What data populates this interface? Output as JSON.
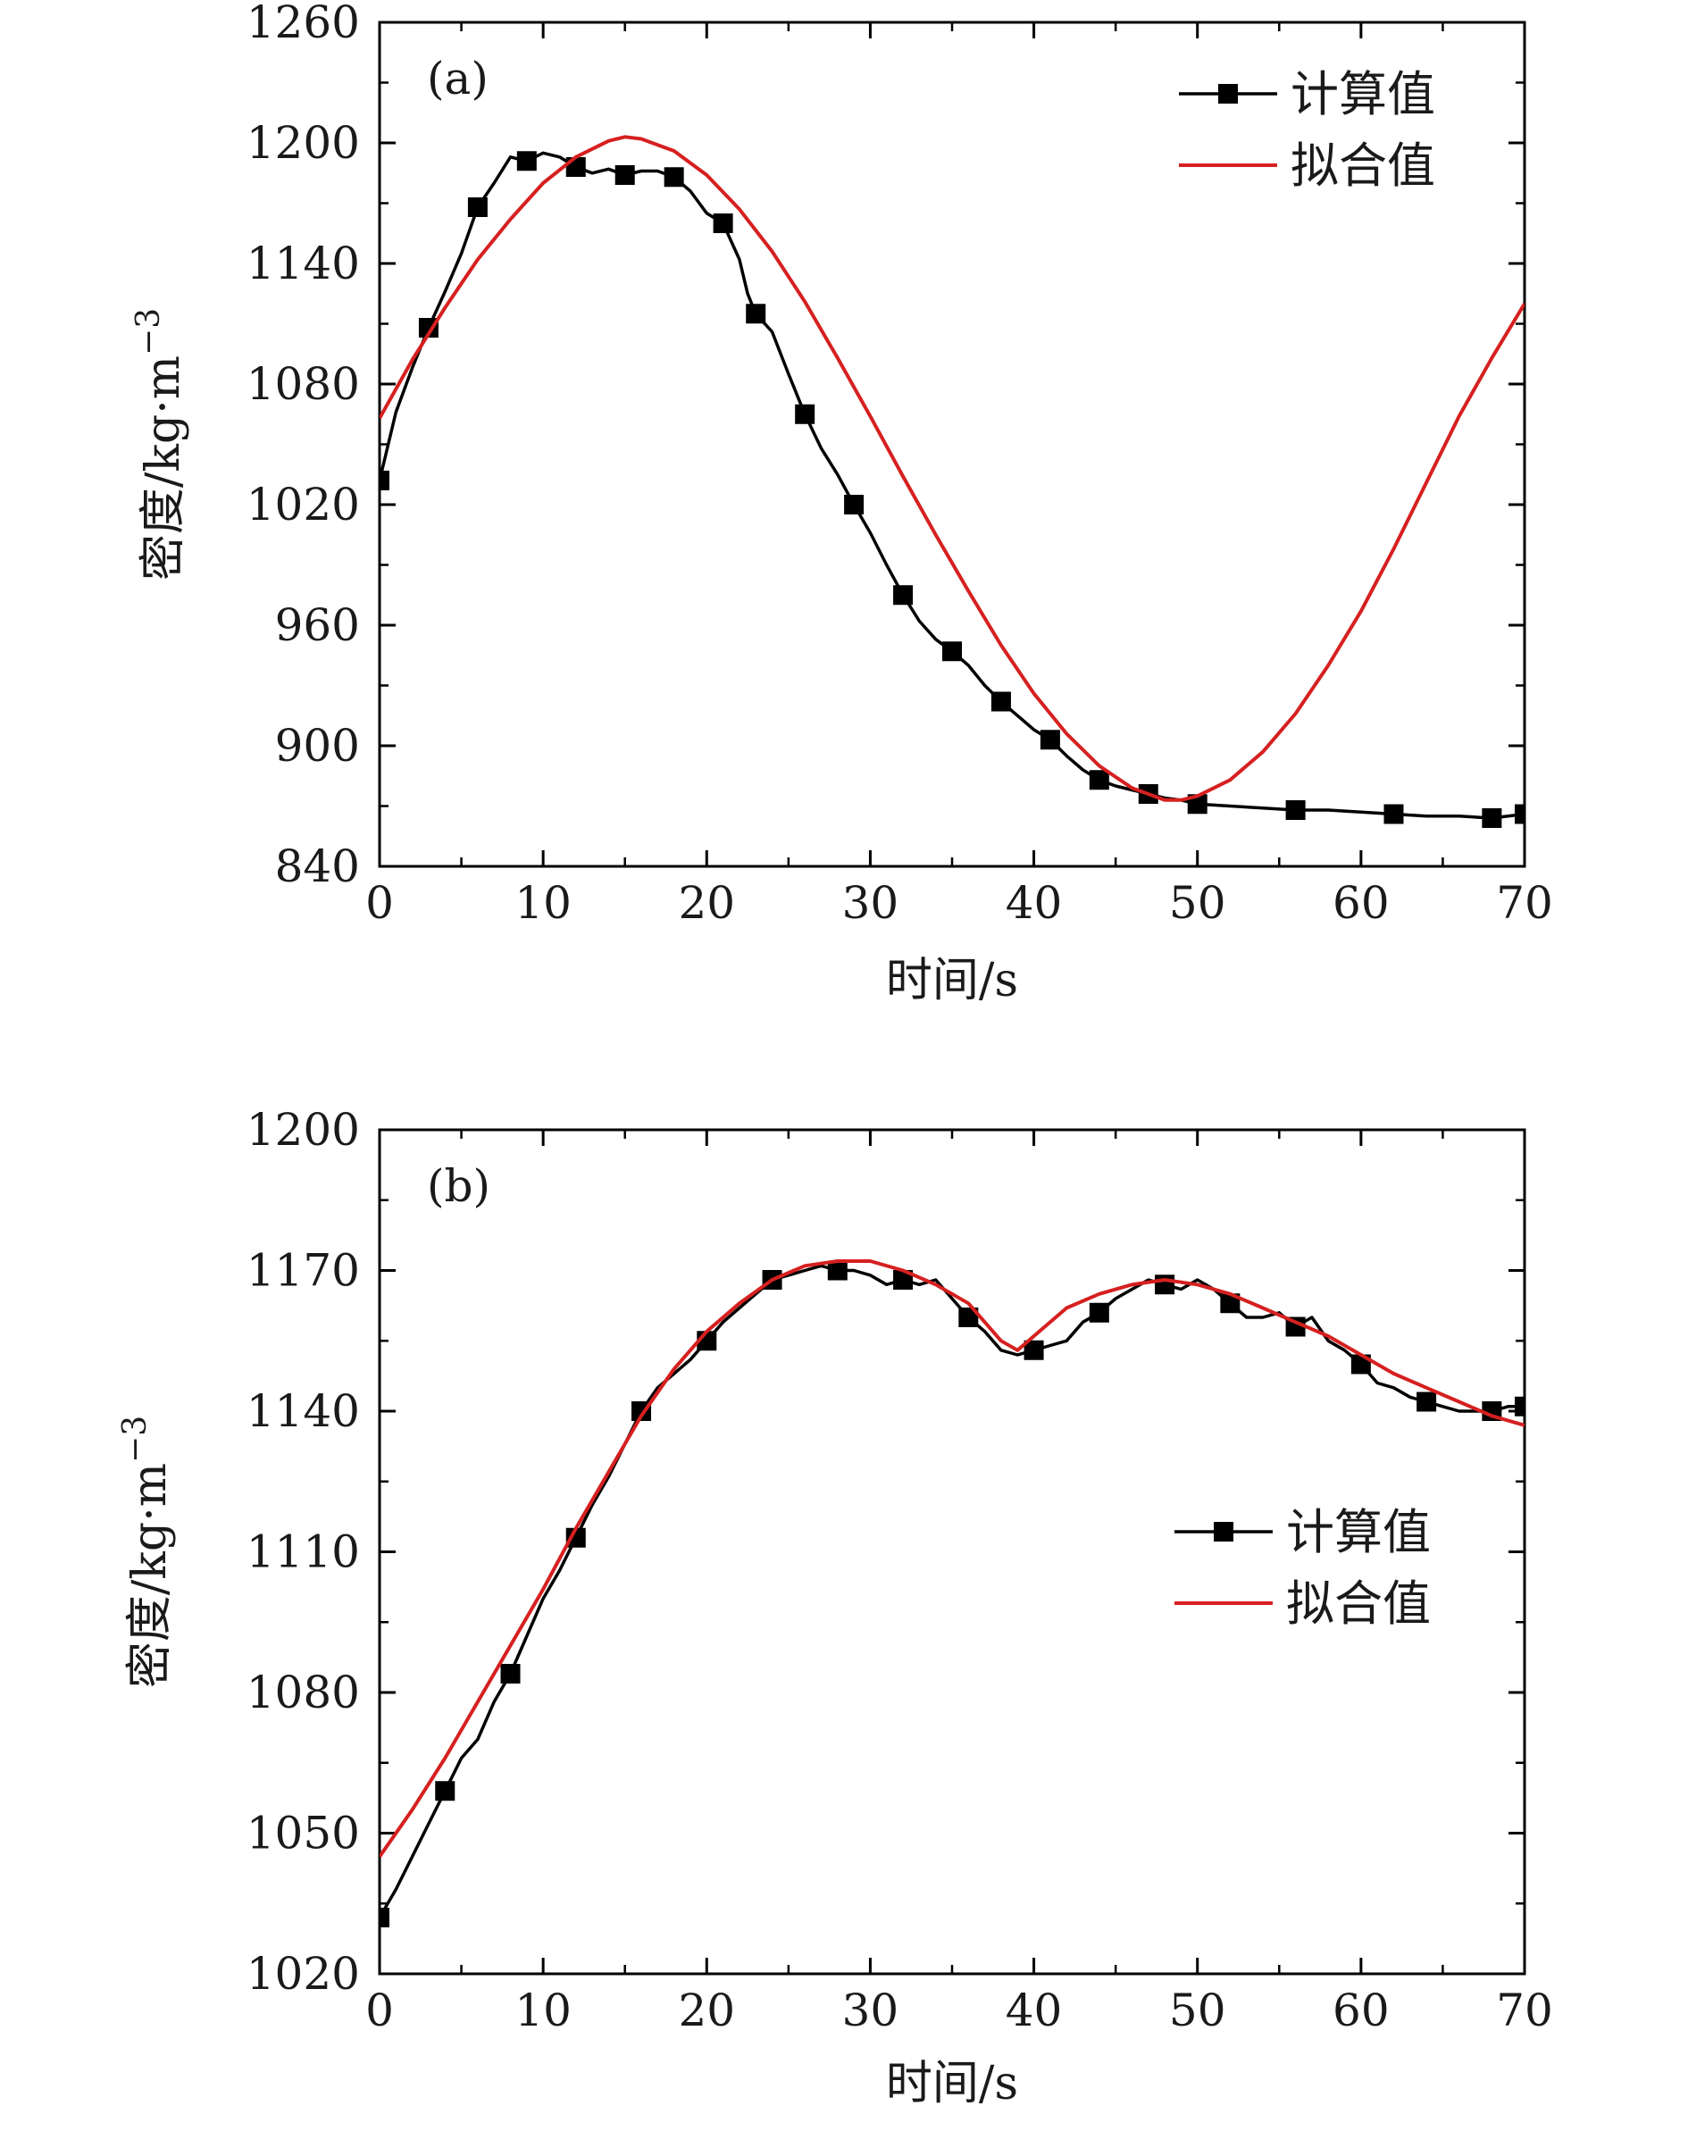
{
  "figure": {
    "colors": {
      "computed": "#000000",
      "fitted": "#d62020",
      "frame": "#000000"
    }
  },
  "chart_data": [
    {
      "type": "line",
      "panel_label": "(a)",
      "xlabel": "时间/s",
      "ylabel": "密度/kg·m",
      "ylabel_exponent": "−3",
      "xlim": [
        0,
        70
      ],
      "ylim": [
        840,
        1260
      ],
      "xticks": [
        0,
        10,
        20,
        30,
        40,
        50,
        60,
        70
      ],
      "yticks": [
        840,
        900,
        960,
        1020,
        1080,
        1140,
        1200,
        1260
      ],
      "grid": false,
      "legend_position": "top-right",
      "series": [
        {
          "name": "计算值",
          "style": "line-square-markers",
          "color": "#000000",
          "x": [
            0,
            1,
            2,
            3,
            4,
            5,
            6,
            7,
            8,
            9,
            10,
            11,
            12,
            13,
            14,
            15,
            16,
            17,
            18,
            19,
            20,
            21,
            22,
            22.5,
            23,
            24,
            25,
            26,
            27,
            28,
            29,
            30,
            31,
            32,
            33,
            34,
            35,
            36,
            37,
            38,
            39,
            40,
            41,
            42,
            43,
            44,
            45,
            46,
            47,
            48,
            49,
            50,
            52,
            54,
            56,
            58,
            60,
            62,
            64,
            66,
            68,
            70
          ],
          "y": [
            1032,
            1066,
            1088,
            1108,
            1126,
            1145,
            1168,
            1180,
            1193,
            1191,
            1195,
            1193,
            1188,
            1185,
            1187,
            1184,
            1186,
            1186,
            1183,
            1176,
            1165,
            1160,
            1142,
            1125,
            1115,
            1106,
            1085,
            1065,
            1048,
            1035,
            1020,
            1006,
            990,
            975,
            962,
            953,
            947,
            940,
            930,
            922,
            915,
            908,
            903,
            895,
            888,
            883,
            880,
            878,
            876,
            874,
            873,
            871,
            870,
            869,
            868,
            868,
            867,
            866,
            865,
            865,
            864,
            866
          ]
        },
        {
          "name": "拟合值",
          "style": "line",
          "color": "#d62020",
          "x": [
            0,
            2,
            4,
            6,
            8,
            10,
            12,
            14,
            15,
            16,
            18,
            20,
            22,
            24,
            26,
            28,
            30,
            32,
            34,
            36,
            38,
            40,
            42,
            44,
            46,
            48,
            49,
            50,
            52,
            54,
            56,
            58,
            60,
            62,
            64,
            66,
            68,
            70
          ],
          "y": [
            1063,
            1092,
            1118,
            1142,
            1162,
            1180,
            1193,
            1201,
            1203,
            1202,
            1196,
            1184,
            1167,
            1146,
            1121,
            1093,
            1064,
            1034,
            1005,
            977,
            950,
            926,
            906,
            890,
            879,
            873,
            873,
            875,
            883,
            897,
            916,
            940,
            967,
            998,
            1031,
            1064,
            1093,
            1120
          ]
        }
      ]
    },
    {
      "type": "line",
      "panel_label": "(b)",
      "xlabel": "时间/s",
      "ylabel": "密度/kg·m",
      "ylabel_exponent": "−3",
      "xlim": [
        0,
        70
      ],
      "ylim": [
        1020,
        1200
      ],
      "xticks": [
        0,
        10,
        20,
        30,
        40,
        50,
        60,
        70
      ],
      "yticks": [
        1020,
        1050,
        1080,
        1110,
        1140,
        1170,
        1200
      ],
      "grid": false,
      "legend_position": "center-right",
      "series": [
        {
          "name": "计算值",
          "style": "line-square-markers",
          "color": "#000000",
          "x": [
            0,
            1,
            2,
            3,
            4,
            5,
            6,
            7,
            8,
            9,
            10,
            11,
            12,
            13,
            14,
            15,
            16,
            17,
            18,
            19,
            20,
            21,
            22,
            23,
            24,
            25,
            26,
            27,
            28,
            29,
            30,
            31,
            32,
            33,
            34,
            35,
            36,
            37,
            38,
            39,
            40,
            41,
            42,
            43,
            44,
            45,
            46,
            47,
            48,
            49,
            50,
            51,
            52,
            53,
            54,
            55,
            56,
            57,
            58,
            59,
            60,
            61,
            62,
            63,
            64,
            65,
            66,
            67,
            68,
            69,
            70
          ],
          "y": [
            1032,
            1038,
            1045,
            1052,
            1059,
            1066,
            1070,
            1078,
            1084,
            1092,
            1100,
            1106,
            1113,
            1120,
            1126,
            1133,
            1140,
            1145,
            1148,
            1151,
            1155,
            1159,
            1162,
            1165,
            1168,
            1169,
            1170,
            1171,
            1170,
            1170,
            1169,
            1167,
            1168,
            1167,
            1168,
            1164,
            1160,
            1157,
            1153,
            1152,
            1153,
            1154,
            1155,
            1159,
            1161,
            1164,
            1166,
            1168,
            1167,
            1166,
            1168,
            1166,
            1163,
            1160,
            1160,
            1161,
            1158,
            1160,
            1155,
            1153,
            1150,
            1146,
            1145,
            1143,
            1142,
            1141,
            1140,
            1140,
            1140,
            1141,
            1141
          ]
        },
        {
          "name": "拟合值",
          "style": "line",
          "color": "#d62020",
          "x": [
            0,
            2,
            4,
            6,
            8,
            10,
            12,
            14,
            16,
            18,
            20,
            22,
            24,
            26,
            28,
            30,
            32,
            34,
            36,
            37,
            38,
            39,
            40,
            42,
            44,
            46,
            48,
            50,
            52,
            54,
            56,
            58,
            60,
            62,
            64,
            66,
            68,
            70
          ],
          "y": [
            1045,
            1055,
            1066,
            1078,
            1090,
            1102,
            1115,
            1127,
            1139,
            1149,
            1157,
            1163,
            1168,
            1171,
            1172,
            1172,
            1170,
            1167,
            1163,
            1159,
            1155,
            1153,
            1156,
            1162,
            1165,
            1167,
            1168,
            1167,
            1165,
            1162,
            1159,
            1156,
            1152,
            1148,
            1145,
            1142,
            1139,
            1137
          ]
        }
      ]
    }
  ]
}
